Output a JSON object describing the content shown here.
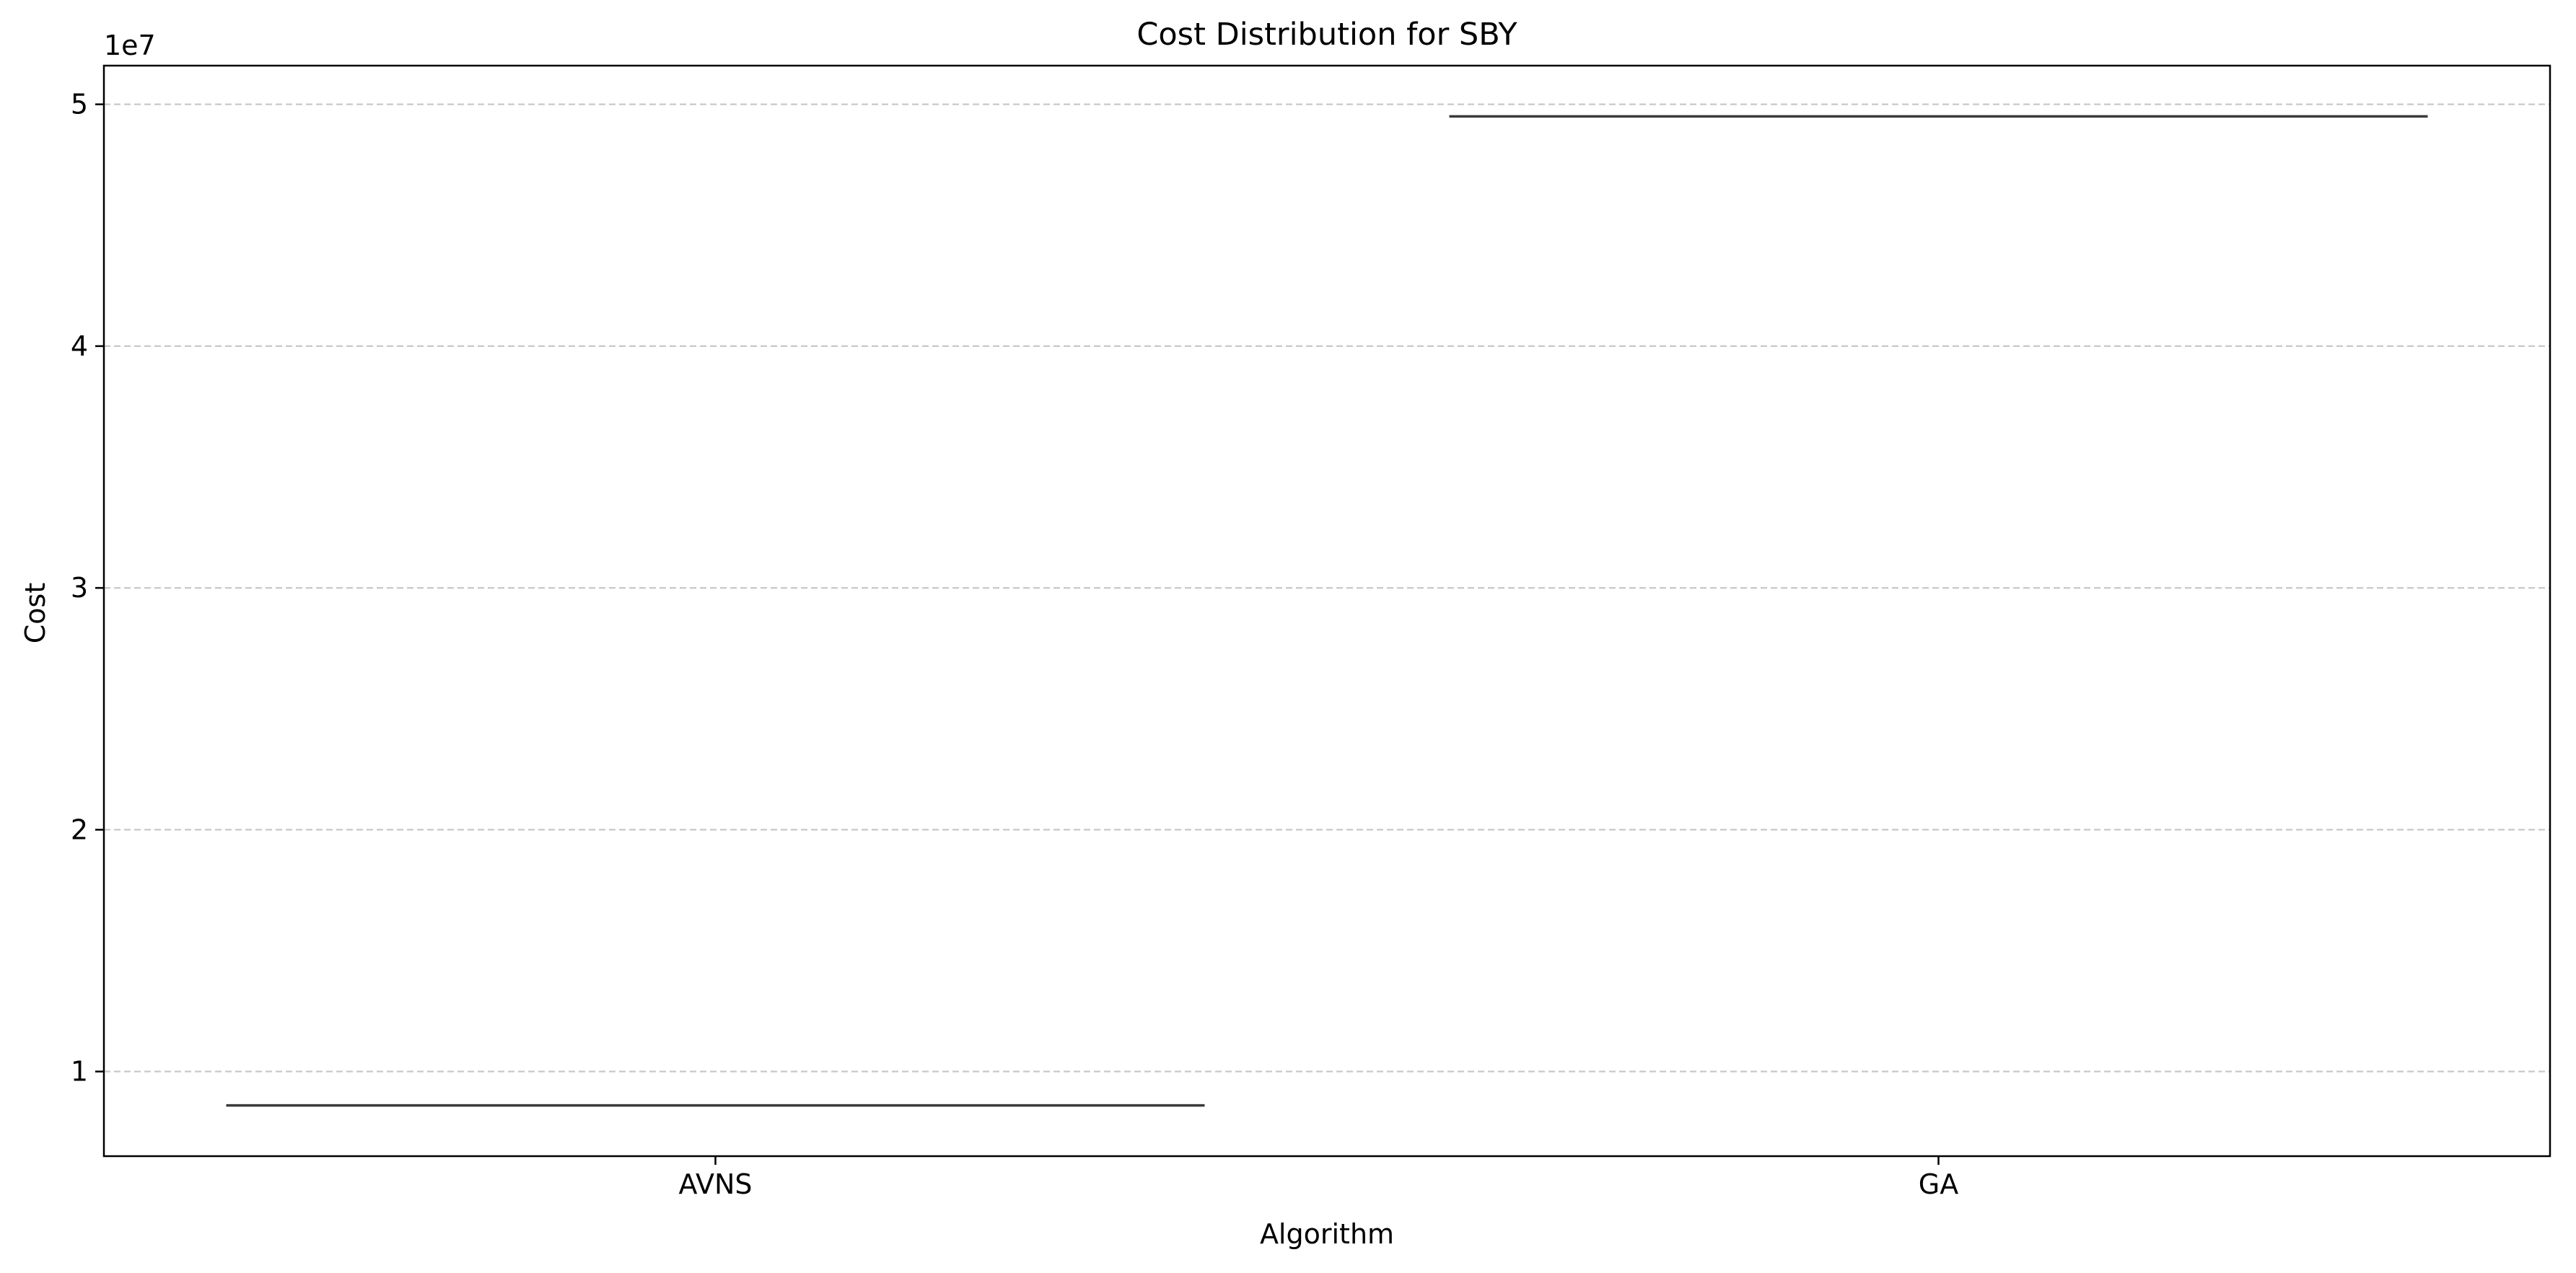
{
  "chart_data": {
    "type": "box",
    "title": "Cost Distribution for SBY",
    "xlabel": "Algorithm",
    "ylabel": "Cost",
    "y_offset_label": "1e7",
    "categories": [
      "AVNS",
      "GA"
    ],
    "values": [
      8600000,
      49500000
    ],
    "ylim": [
      6500000,
      51600000
    ],
    "yticks": [
      10000000,
      20000000,
      30000000,
      40000000,
      50000000
    ],
    "ytick_labels": [
      "1",
      "2",
      "3",
      "4",
      "5"
    ],
    "grid": "y-dashed",
    "box_color": "#3a3a3a",
    "grid_color": "#c8c8c8"
  }
}
